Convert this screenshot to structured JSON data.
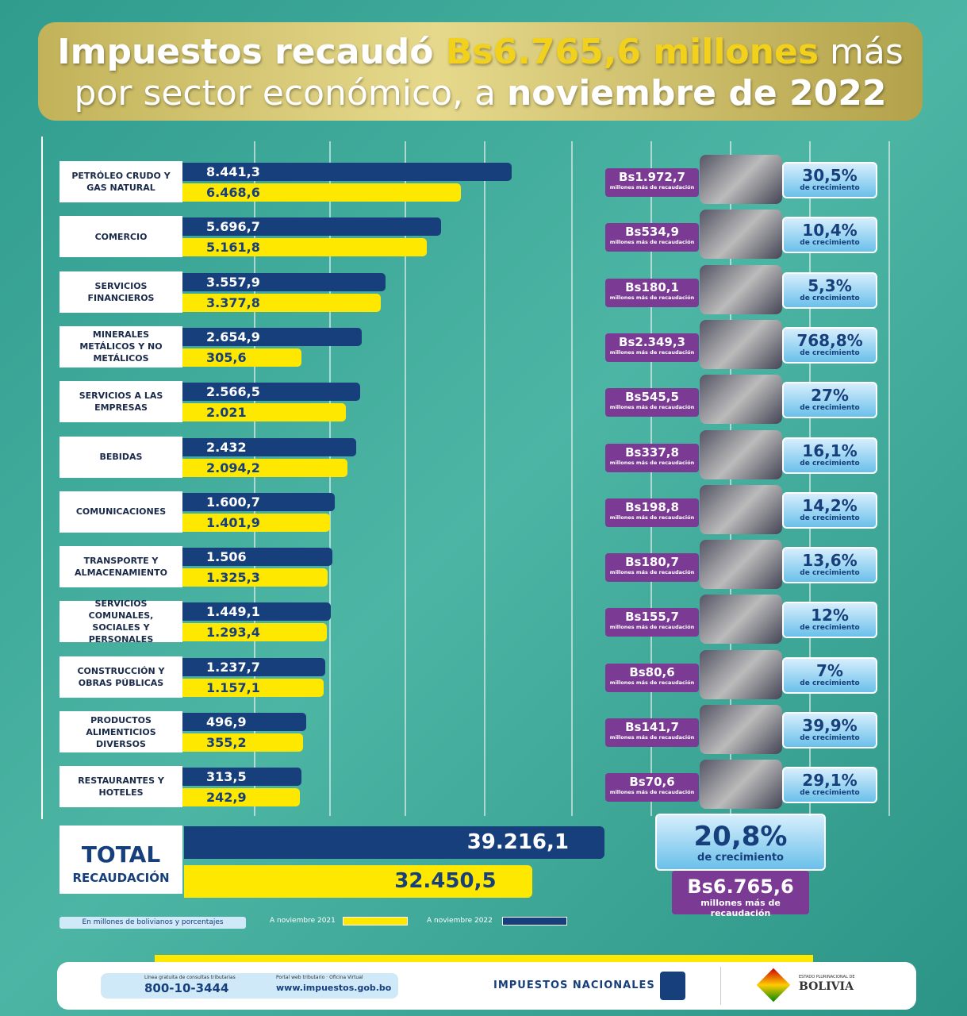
{
  "chart_data": {
    "type": "bar",
    "title": [
      "Impuestos recaudó ",
      "Bs6.765,6 millones",
      " más",
      "por sector económico, a ",
      "noviembre de 2022"
    ],
    "categories": [
      "PETRÓLEO CRUDO Y GAS NATURAL",
      "COMERCIO",
      "SERVICIOS FINANCIEROS",
      "MINERALES METÁLICOS Y NO METÁLICOS",
      "SERVICIOS A LAS EMPRESAS",
      "BEBIDAS",
      "COMUNICACIONES",
      "TRANSPORTE Y ALMACENAMIENTO",
      "SERVICIOS COMUNALES, SOCIALES Y PERSONALES",
      "CONSTRUCCIÓN Y OBRAS PÚBLICAS",
      "PRODUCTOS ALIMENTICIOS DIVERSOS",
      "RESTAURANTES Y HOTELES"
    ],
    "series": [
      {
        "name": "A noviembre 2022",
        "color": "#173f7c",
        "values": [
          8441.3,
          5696.7,
          3557.9,
          2654.9,
          2566.5,
          2432,
          1600.7,
          1506,
          1449.1,
          1237.7,
          496.9,
          313.5
        ],
        "value_labels": [
          "8.441,3",
          "5.696,7",
          "3.557,9",
          "2.654,9",
          "2.566,5",
          "2.432",
          "1.600,7",
          "1.506",
          "1.449,1",
          "1.237,7",
          "496,9",
          "313,5"
        ]
      },
      {
        "name": "A noviembre 2021",
        "color": "#ffe800",
        "values": [
          6468.6,
          5161.8,
          3377.8,
          305.6,
          2021,
          2094.2,
          1401.9,
          1325.3,
          1293.4,
          1157.1,
          355.2,
          242.9
        ],
        "value_labels": [
          "6.468,6",
          "5.161,8",
          "3.377,8",
          "305,6",
          "2.021",
          "2.094,2",
          "1.401,9",
          "1.325,3",
          "1.293,4",
          "1.157,1",
          "355,2",
          "242,9"
        ]
      }
    ],
    "increase": {
      "values": [
        1972.7,
        534.9,
        180.1,
        2349.3,
        545.5,
        337.8,
        198.8,
        180.7,
        155.7,
        80.6,
        141.7,
        70.6
      ],
      "value_labels": [
        "Bs1.972,7",
        "Bs534,9",
        "Bs180,1",
        "Bs2.349,3",
        "Bs545,5",
        "Bs337,8",
        "Bs198,8",
        "Bs180,7",
        "Bs155,7",
        "Bs80,6",
        "Bs141,7",
        "Bs70,6"
      ],
      "note": "millones más de recaudación"
    },
    "growth": {
      "values": [
        30.5,
        10.4,
        5.3,
        768.8,
        27,
        16.1,
        14.2,
        13.6,
        12,
        7,
        39.9,
        29.1
      ],
      "value_labels": [
        "30,5%",
        "10,4%",
        "5,3%",
        "768,8%",
        "27%",
        "16,1%",
        "14,2%",
        "13,6%",
        "12%",
        "7%",
        "39,9%",
        "29,1%"
      ],
      "note": "de crecimiento"
    },
    "total": {
      "label": "TOTAL",
      "sublabel": "RECAUDACIÓN",
      "values": [
        39216.1,
        32450.5
      ],
      "value_labels": [
        "39.216,1",
        "32.450,5"
      ],
      "growth": 20.8,
      "growth_label": "20,8%",
      "growth_note": "de crecimiento",
      "increase": 6765.6,
      "increase_label": "Bs6.765,6",
      "increase_note": "millones más de recaudación"
    },
    "note": "En millones de bolivianos y porcentajes"
  },
  "footer": {
    "phone_caption": "Línea gratuita de consultas tributarias",
    "phone": "800-10-3444",
    "web_caption": "Portal web tributario · Oficina Virtual",
    "web": "www.impuestos.gob.bo",
    "brand": "IMPUESTOS NACIONALES",
    "state": "ESTADO PLURINACIONAL DE",
    "country": "BOLIVIA"
  }
}
